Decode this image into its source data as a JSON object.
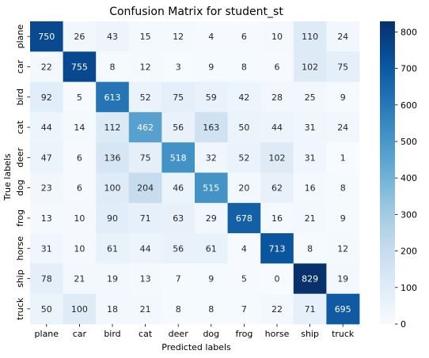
{
  "chart_data": {
    "type": "heatmap",
    "title": "Confusion Matrix for student_st",
    "xlabel": "Predicted labels",
    "ylabel": "True labels",
    "x_categories": [
      "plane",
      "car",
      "bird",
      "cat",
      "deer",
      "dog",
      "frog",
      "horse",
      "ship",
      "truck"
    ],
    "y_categories": [
      "plane",
      "car",
      "bird",
      "cat",
      "deer",
      "dog",
      "frog",
      "horse",
      "ship",
      "truck"
    ],
    "values": [
      [
        750,
        26,
        43,
        15,
        12,
        4,
        6,
        10,
        110,
        24
      ],
      [
        22,
        755,
        8,
        12,
        3,
        9,
        8,
        6,
        102,
        75
      ],
      [
        92,
        5,
        613,
        52,
        75,
        59,
        42,
        28,
        25,
        9
      ],
      [
        44,
        14,
        112,
        462,
        56,
        163,
        50,
        44,
        31,
        24
      ],
      [
        47,
        6,
        136,
        75,
        518,
        32,
        52,
        102,
        31,
        1
      ],
      [
        23,
        6,
        100,
        204,
        46,
        515,
        20,
        62,
        16,
        8
      ],
      [
        13,
        10,
        90,
        71,
        63,
        29,
        678,
        16,
        21,
        9
      ],
      [
        31,
        10,
        61,
        44,
        56,
        61,
        4,
        713,
        8,
        12
      ],
      [
        78,
        21,
        19,
        13,
        7,
        9,
        5,
        0,
        829,
        19
      ],
      [
        50,
        100,
        18,
        21,
        8,
        8,
        7,
        22,
        71,
        695
      ]
    ],
    "colorbar": {
      "colormap": "Blues",
      "vmin": 0,
      "vmax": 829,
      "ticks": [
        0,
        100,
        200,
        300,
        400,
        500,
        600,
        700,
        800
      ]
    }
  }
}
